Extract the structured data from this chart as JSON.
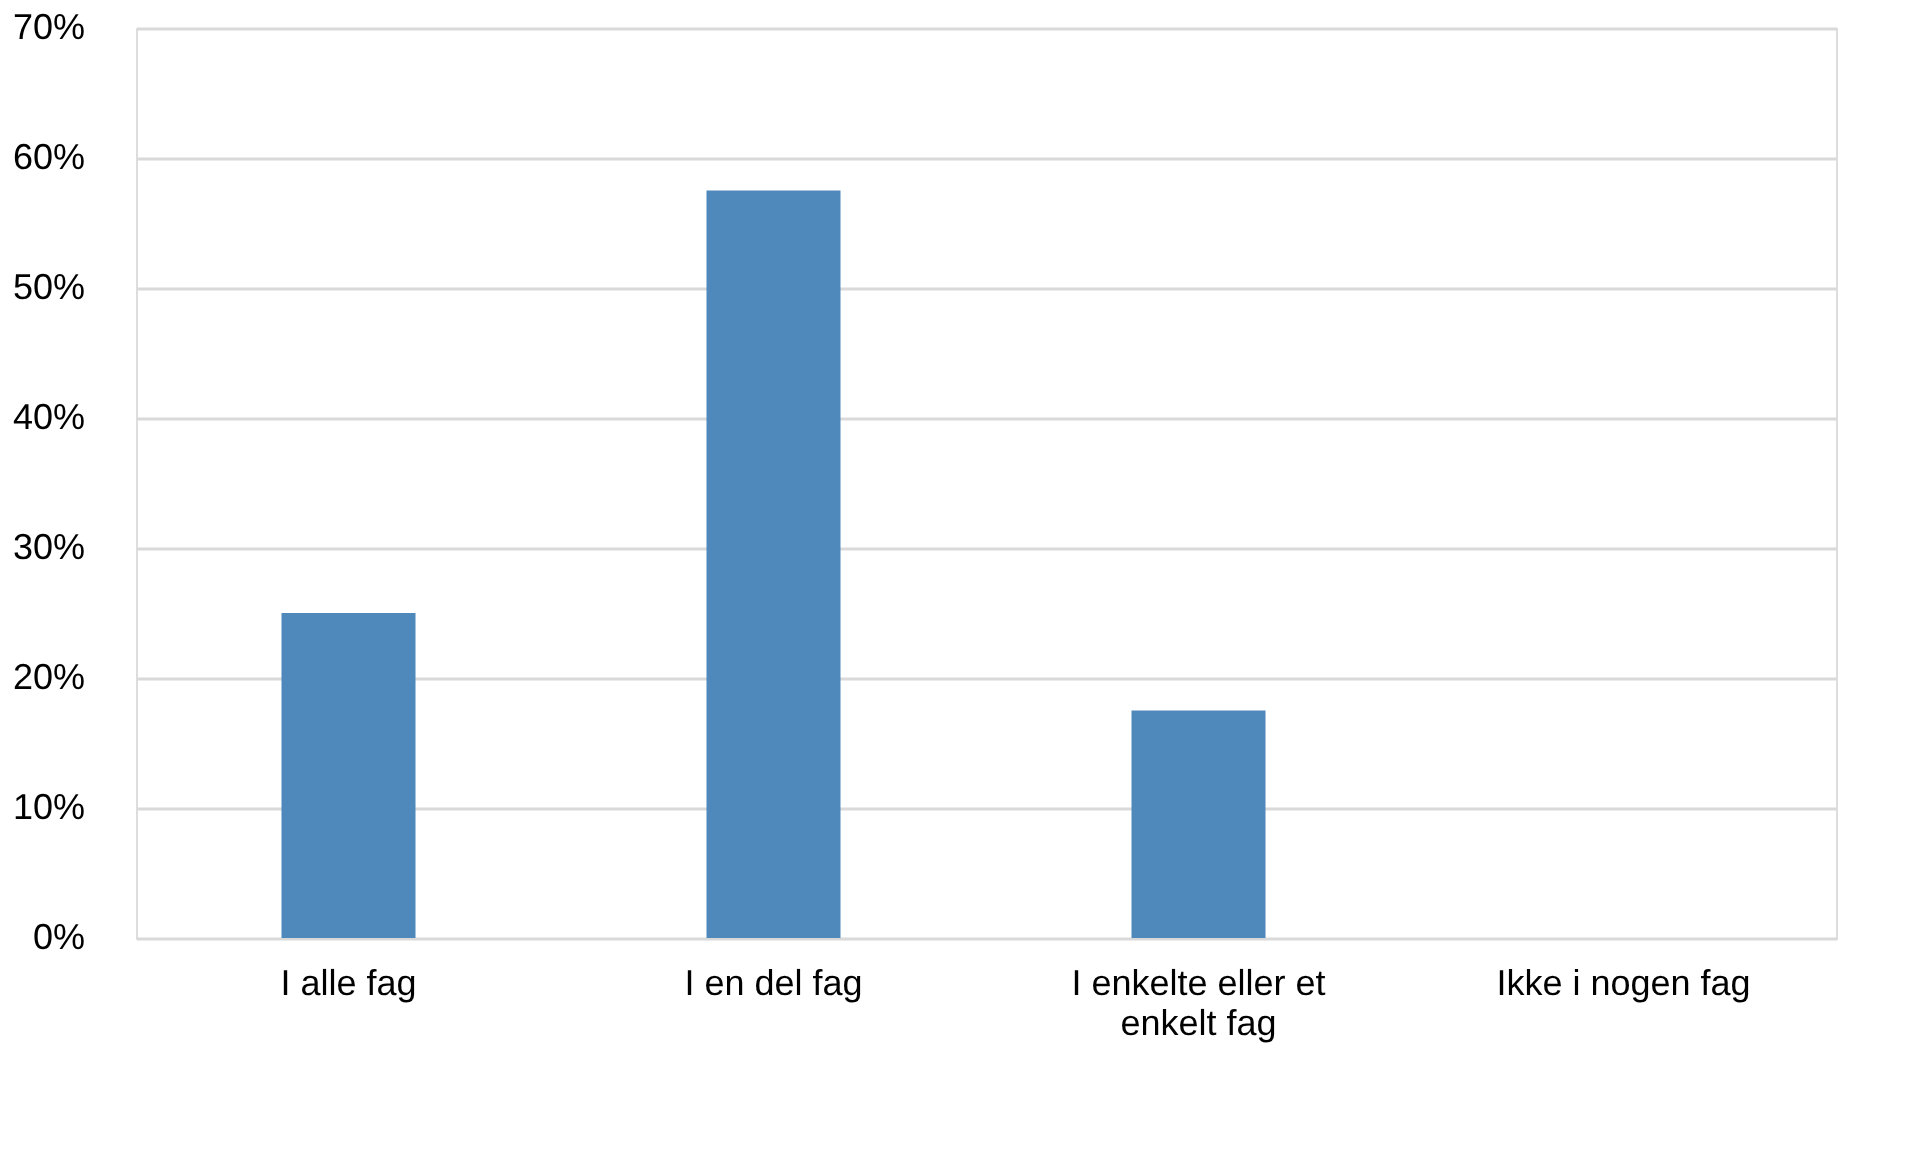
{
  "chart_data": {
    "type": "bar",
    "categories": [
      "I alle fag",
      "I en del fag",
      "I enkelte eller et enkelt fag",
      "Ikke i nogen fag"
    ],
    "values": [
      25,
      57.5,
      17.5,
      0
    ],
    "color": "#4f88bb",
    "ylim": [
      0,
      70
    ],
    "yticks": [
      {
        "value": 0,
        "label": "0%"
      },
      {
        "value": 10,
        "label": "10%"
      },
      {
        "value": 20,
        "label": "20%"
      },
      {
        "value": 30,
        "label": "30%"
      },
      {
        "value": 40,
        "label": "40%"
      },
      {
        "value": 50,
        "label": "50%"
      },
      {
        "value": 60,
        "label": "60%"
      },
      {
        "value": 70,
        "label": "70%"
      }
    ],
    "grid": "y"
  }
}
